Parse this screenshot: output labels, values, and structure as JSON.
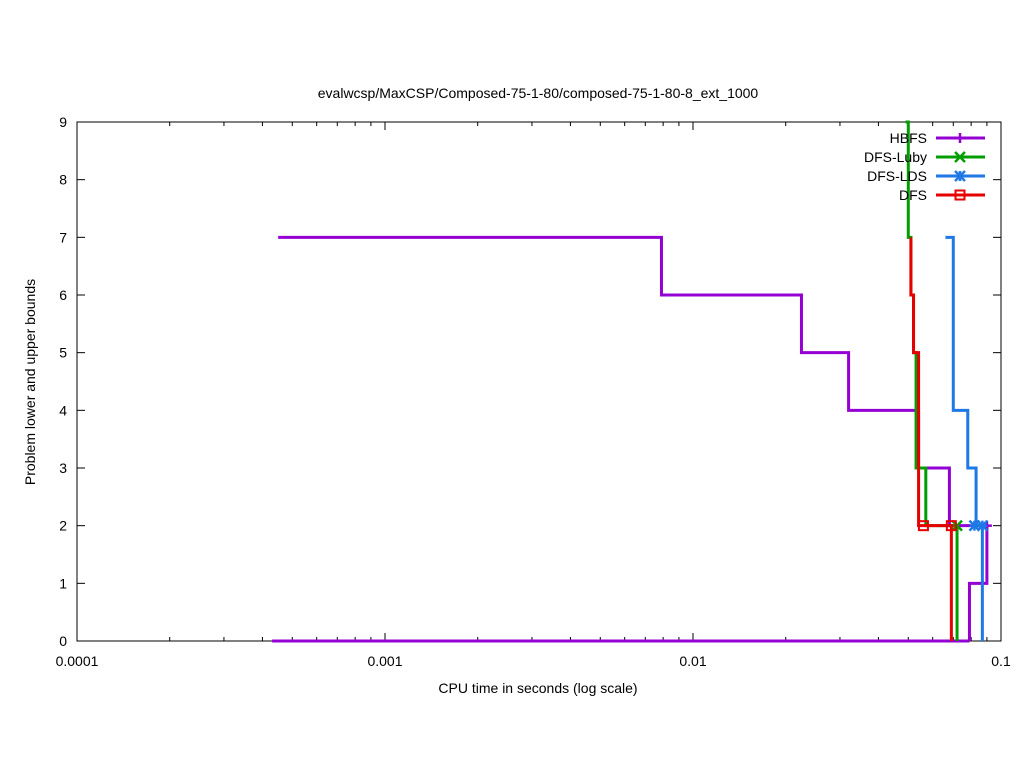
{
  "chart_data": {
    "type": "line",
    "title": "evalwcsp/MaxCSP/Composed-75-1-80/composed-75-1-80-8_ext_1000",
    "xlabel": "CPU time in seconds (log scale)",
    "ylabel": "Problem lower and upper bounds",
    "xscale": "log",
    "xlim": [
      0.0001,
      0.1
    ],
    "ylim": [
      0,
      9
    ],
    "x_ticks": [
      {
        "value": 0.0001,
        "label": "0.0001"
      },
      {
        "value": 0.001,
        "label": "0.001"
      },
      {
        "value": 0.01,
        "label": "0.01"
      },
      {
        "value": 0.1,
        "label": "0.1"
      }
    ],
    "y_ticks": [
      0,
      1,
      2,
      3,
      4,
      5,
      6,
      7,
      8,
      9
    ],
    "legend_position": "top-right",
    "series": [
      {
        "name": "HBFS",
        "color": "#9400d3",
        "marker": "plus",
        "upper": [
          [
            0.00045,
            7
          ],
          [
            0.0079,
            7
          ],
          [
            0.0079,
            6
          ],
          [
            0.0225,
            6
          ],
          [
            0.0225,
            5
          ],
          [
            0.032,
            5
          ],
          [
            0.032,
            4
          ],
          [
            0.054,
            4
          ],
          [
            0.054,
            3
          ],
          [
            0.068,
            3
          ],
          [
            0.068,
            2
          ],
          [
            0.09,
            2
          ],
          [
            0.09,
            1
          ],
          [
            0.079,
            1
          ],
          [
            0.079,
            0
          ]
        ],
        "lower": [
          [
            0.00043,
            0
          ],
          [
            0.079,
            0
          ]
        ],
        "markers": [
          [
            0.09,
            2
          ]
        ]
      },
      {
        "name": "DFS-Luby",
        "color": "#009e00",
        "marker": "cross",
        "upper": [
          [
            0.049,
            9
          ],
          [
            0.05,
            9
          ],
          [
            0.05,
            7
          ],
          [
            0.051,
            7
          ],
          [
            0.051,
            6
          ],
          [
            0.052,
            6
          ],
          [
            0.052,
            5
          ],
          [
            0.053,
            5
          ],
          [
            0.053,
            3
          ],
          [
            0.057,
            3
          ],
          [
            0.057,
            2
          ],
          [
            0.072,
            2
          ]
        ],
        "lower": [
          [
            0.072,
            0
          ],
          [
            0.072,
            2
          ]
        ],
        "markers": [
          [
            0.072,
            2
          ]
        ]
      },
      {
        "name": "DFS-LDS",
        "color": "#1e78e6",
        "marker": "star",
        "upper": [
          [
            0.066,
            7
          ],
          [
            0.07,
            7
          ],
          [
            0.07,
            4
          ],
          [
            0.078,
            4
          ],
          [
            0.078,
            3
          ],
          [
            0.083,
            3
          ],
          [
            0.083,
            2
          ],
          [
            0.087,
            2
          ]
        ],
        "lower": [
          [
            0.087,
            0
          ],
          [
            0.087,
            2
          ]
        ],
        "markers": [
          [
            0.082,
            2
          ],
          [
            0.087,
            2
          ]
        ]
      },
      {
        "name": "DFS",
        "color": "#e60000",
        "marker": "square",
        "upper": [
          [
            0.051,
            7
          ],
          [
            0.051,
            6
          ],
          [
            0.052,
            6
          ],
          [
            0.052,
            5
          ],
          [
            0.054,
            5
          ],
          [
            0.054,
            2
          ],
          [
            0.07,
            2
          ]
        ],
        "lower": [
          [
            0.069,
            0
          ],
          [
            0.069,
            2
          ]
        ],
        "markers": [
          [
            0.056,
            2
          ],
          [
            0.069,
            2
          ]
        ]
      }
    ]
  }
}
